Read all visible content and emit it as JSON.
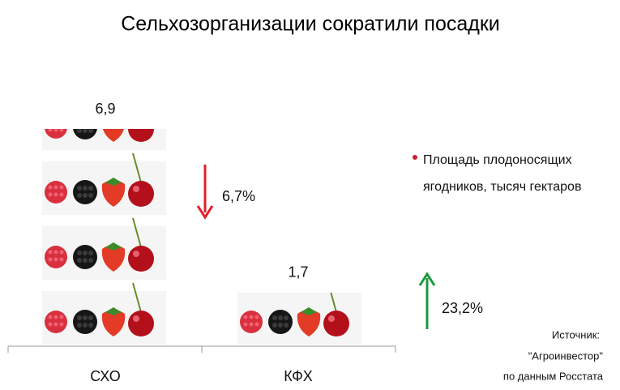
{
  "chart_data": {
    "type": "pictograph",
    "title": "Сельхозорганизации сократили  посадки",
    "categories": [
      "СХО",
      "КФХ"
    ],
    "series": [
      {
        "name": "Площадь плодоносящих ягодников, тысяч гектаров",
        "color": "#c8202e",
        "values": [
          6.9,
          1.7
        ],
        "value_labels": [
          "6,9",
          "1,7"
        ]
      }
    ],
    "annotations": [
      {
        "text": "6,7%",
        "color": "#e0202a"
      },
      {
        "text": "23,2%",
        "color": "#1a9a3c"
      }
    ],
    "source": [
      "Источник:",
      "\"Агроинвестор\"",
      "по данным Росстата"
    ]
  }
}
